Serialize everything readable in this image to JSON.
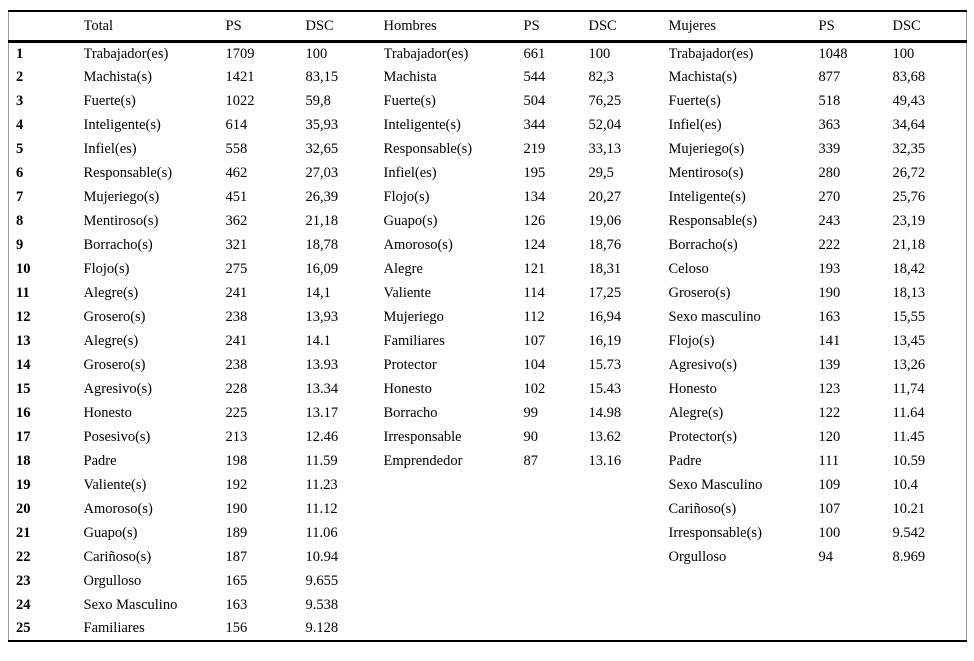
{
  "table": {
    "headers": [
      "",
      "Total",
      "PS",
      "DSC",
      "Hombres",
      "PS",
      "DSC",
      "Mujeres",
      "PS",
      "DSC"
    ],
    "rows": [
      [
        "1",
        "Trabajador(es)",
        "1709",
        "100",
        "Trabajador(es)",
        "661",
        "100",
        "Trabajador(es)",
        "1048",
        "100"
      ],
      [
        "2",
        "Machista(s)",
        "1421",
        "83,15",
        "Machista",
        "544",
        "82,3",
        "Machista(s)",
        "877",
        "83,68"
      ],
      [
        "3",
        "Fuerte(s)",
        "1022",
        "59,8",
        "Fuerte(s)",
        "504",
        "76,25",
        "Fuerte(s)",
        "518",
        "49,43"
      ],
      [
        "4",
        "Inteligente(s)",
        "614",
        "35,93",
        "Inteligente(s)",
        "344",
        "52,04",
        "Infiel(es)",
        "363",
        "34,64"
      ],
      [
        "5",
        "Infiel(es)",
        "558",
        "32,65",
        "Responsable(s)",
        "219",
        "33,13",
        "Mujeriego(s)",
        "339",
        "32,35"
      ],
      [
        "6",
        "Responsable(s)",
        "462",
        "27,03",
        "Infiel(es)",
        "195",
        "29,5",
        "Mentiroso(s)",
        "280",
        "26,72"
      ],
      [
        "7",
        "Mujeriego(s)",
        "451",
        "26,39",
        "Flojo(s)",
        "134",
        "20,27",
        "Inteligente(s)",
        "270",
        "25,76"
      ],
      [
        "8",
        "Mentiroso(s)",
        "362",
        "21,18",
        "Guapo(s)",
        "126",
        "19,06",
        "Responsable(s)",
        "243",
        "23,19"
      ],
      [
        "9",
        "Borracho(s)",
        "321",
        "18,78",
        "Amoroso(s)",
        "124",
        "18,76",
        "Borracho(s)",
        "222",
        "21,18"
      ],
      [
        "10",
        "Flojo(s)",
        "275",
        "16,09",
        "Alegre",
        "121",
        "18,31",
        "Celoso",
        "193",
        "18,42"
      ],
      [
        "11",
        "Alegre(s)",
        "241",
        "14,1",
        "Valiente",
        "114",
        "17,25",
        "Grosero(s)",
        "190",
        "18,13"
      ],
      [
        "12",
        "Grosero(s)",
        "238",
        "13,93",
        "Mujeriego",
        "112",
        "16,94",
        "Sexo masculino",
        "163",
        "15,55"
      ],
      [
        "13",
        "Alegre(s)",
        "241",
        "14.1",
        "Familiares",
        "107",
        "16,19",
        "Flojo(s)",
        "141",
        "13,45"
      ],
      [
        "14",
        "Grosero(s)",
        "238",
        "13.93",
        "Protector",
        "104",
        "15.73",
        "Agresivo(s)",
        "139",
        "13,26"
      ],
      [
        "15",
        "Agresivo(s)",
        "228",
        "13.34",
        "Honesto",
        "102",
        "15.43",
        "Honesto",
        "123",
        "11,74"
      ],
      [
        "16",
        "Honesto",
        "225",
        "13.17",
        "Borracho",
        "99",
        "14.98",
        "Alegre(s)",
        "122",
        "11.64"
      ],
      [
        "17",
        "Posesivo(s)",
        "213",
        "12.46",
        "Irresponsable",
        "90",
        "13.62",
        "Protector(s)",
        "120",
        "11.45"
      ],
      [
        "18",
        "Padre",
        "198",
        "11.59",
        "Emprendedor",
        "87",
        "13.16",
        "Padre",
        "111",
        "10.59"
      ],
      [
        "19",
        "Valiente(s)",
        "192",
        "11.23",
        "",
        "",
        "",
        "Sexo Masculino",
        "109",
        "10.4"
      ],
      [
        "20",
        "Amoroso(s)",
        "190",
        "11.12",
        "",
        "",
        "",
        "Cariñoso(s)",
        "107",
        "10.21"
      ],
      [
        "21",
        "Guapo(s)",
        "189",
        "11.06",
        "",
        "",
        "",
        "Irresponsable(s)",
        "100",
        "9.542"
      ],
      [
        "22",
        "Cariñoso(s)",
        "187",
        "10.94",
        "",
        "",
        "",
        "Orgulloso",
        "94",
        "8.969"
      ],
      [
        "23",
        "Orgulloso",
        "165",
        "9.655",
        "",
        "",
        "",
        "",
        "",
        ""
      ],
      [
        "24",
        "Sexo Masculino",
        "163",
        "9.538",
        "",
        "",
        "",
        "",
        "",
        ""
      ],
      [
        "25",
        "Familiares",
        "156",
        "9.128",
        "",
        "",
        "",
        "",
        "",
        ""
      ]
    ]
  }
}
